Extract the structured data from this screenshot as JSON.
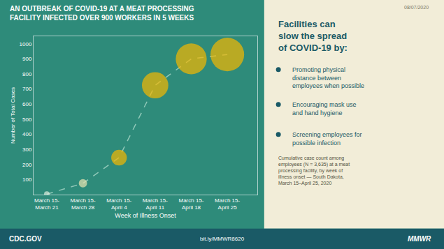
{
  "chart_data": {
    "type": "line",
    "title": "AN OUTBREAK OF COVID-19 AT A MEAT PROCESSING\nFACILITY INFECTED OVER 900 WORKERS IN 5 WEEKS",
    "xlabel": "Week of Illness Onset",
    "ylabel": "Number of Total Cases",
    "categories": [
      "March 15-\nMarch 21",
      "March 15-\nMarch 28",
      "March 15-\nApril 4",
      "March 15-\nApril 11",
      "March 15-\nApril 18",
      "March 15-\nApril 25"
    ],
    "values": [
      3,
      75,
      245,
      725,
      900,
      929
    ],
    "sizes": [
      15,
      80,
      280,
      800,
      1100,
      1300
    ],
    "color": "#90c8b8",
    "colors": [
      "#ddeedd",
      "#e8e4b0",
      "#f5b800",
      "#f5b800",
      "#f5b800",
      "#f5b800"
    ],
    "marker": "circle",
    "line_style": "dashed",
    "ylim": [
      0,
      1050
    ],
    "yticks": [
      100,
      200,
      300,
      400,
      500,
      600,
      700,
      800,
      900,
      1000
    ],
    "grid": false,
    "annotations": [
      "08/07/2020",
      "Facilities can\nslow the spread\nof COVID-19 by:",
      "Promoting physical\ndistance between\nemployees when possible",
      "Encouraging mask use\nand hand hygiene",
      "Screening employees for\npossible infection",
      "Cumulative case count among\nemployees (N = 3,635) at a meat\nprocessing facility, by week of\nillness onset — South Dakota,\nMarch 15–April 25, 2020",
      "CDC.GOV",
      "bit.ly/MMWR8620",
      "MMWR"
    ]
  }
}
